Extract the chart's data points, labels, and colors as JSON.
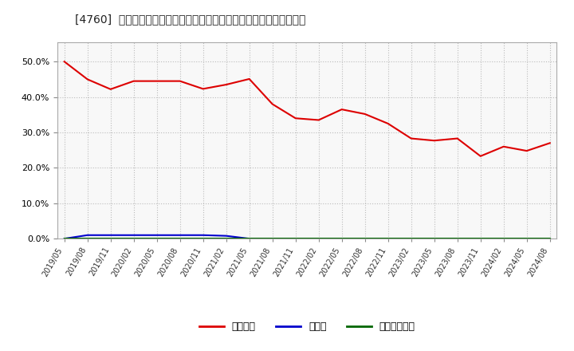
{
  "title": "[4760]  自己資本、のれん、繰延税金資産の総資産に対する比率の推移",
  "x_labels": [
    "2019/05",
    "2019/08",
    "2019/11",
    "2020/02",
    "2020/05",
    "2020/08",
    "2020/11",
    "2021/02",
    "2021/05",
    "2021/08",
    "2021/11",
    "2022/02",
    "2022/05",
    "2022/08",
    "2022/11",
    "2023/02",
    "2023/05",
    "2023/08",
    "2023/11",
    "2024/02",
    "2024/05",
    "2024/08"
  ],
  "equity_ratio": [
    0.5,
    0.45,
    0.422,
    0.445,
    0.445,
    0.445,
    0.423,
    0.435,
    0.451,
    0.38,
    0.34,
    0.335,
    0.365,
    0.352,
    0.325,
    0.283,
    0.277,
    0.283,
    0.233,
    0.26,
    0.248,
    0.27
  ],
  "goodwill_ratio": [
    0.0,
    0.01,
    0.01,
    0.01,
    0.01,
    0.01,
    0.01,
    0.008,
    0.0,
    0.0,
    0.0,
    0.0,
    0.0,
    0.0,
    0.0,
    0.0,
    0.0,
    0.0,
    0.0,
    0.0,
    0.0,
    0.0
  ],
  "deferred_tax_ratio": [
    0.0,
    0.0,
    0.0,
    0.0,
    0.0,
    0.0,
    0.0,
    0.0,
    0.0,
    0.0,
    0.0,
    0.0,
    0.0,
    0.0,
    0.0,
    0.0,
    0.0,
    0.0,
    0.0,
    0.0,
    0.0,
    0.0
  ],
  "equity_color": "#dd0000",
  "goodwill_color": "#0000cc",
  "deferred_tax_color": "#006600",
  "bg_color": "#ffffff",
  "plot_bg_color": "#f8f8f8",
  "grid_color": "#bbbbbb",
  "legend_labels": [
    "自己資本",
    "のれん",
    "繰延税金資産"
  ],
  "ylim": [
    0.0,
    0.555
  ],
  "yticks": [
    0.0,
    0.1,
    0.2,
    0.3,
    0.4,
    0.5
  ]
}
